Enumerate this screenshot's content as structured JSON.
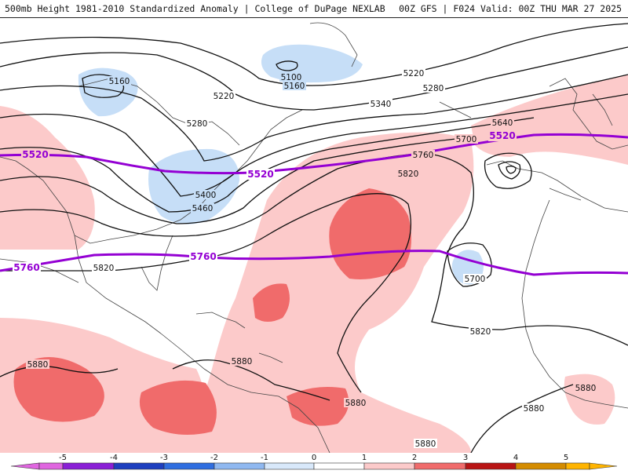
{
  "header": {
    "title_left": "500mb Height 1981-2010 Standardized Anomaly | College of DuPage NEXLAB",
    "title_right": "00Z GFS | F024 Valid: 00Z THU MAR 27 2025"
  },
  "map": {
    "contour_labels": [
      "5160",
      "5100",
      "5160",
      "5220",
      "5280",
      "5220",
      "5280",
      "5340",
      "5400",
      "5460",
      "5640",
      "5700",
      "5760",
      "5820",
      "5700",
      "5820",
      "5820",
      "5880",
      "5880",
      "5880",
      "5880",
      "5880",
      "5880"
    ],
    "highlight_labels": [
      "5520",
      "5520",
      "5520",
      "5760",
      "5760"
    ],
    "colors": {
      "neg1": "#c6def7",
      "pos1": "#fccaca",
      "pos2": "#f06b6b",
      "highlight_line": "#9400d3",
      "contour": "#111111",
      "coast": "#444444"
    }
  },
  "scale": {
    "ticks": [
      "-5",
      "-4",
      "-3",
      "-2",
      "-1",
      "0",
      "1",
      "2",
      "3",
      "4",
      "5"
    ],
    "colors": [
      "#e066e0",
      "#8a1fd6",
      "#1e3fbf",
      "#2f6ee0",
      "#8fb8f0",
      "#d8e8fa",
      "#ffffff",
      "#ffffff",
      "#fccaca",
      "#f06b6b",
      "#b81414",
      "#d48c00",
      "#ffb400"
    ]
  }
}
